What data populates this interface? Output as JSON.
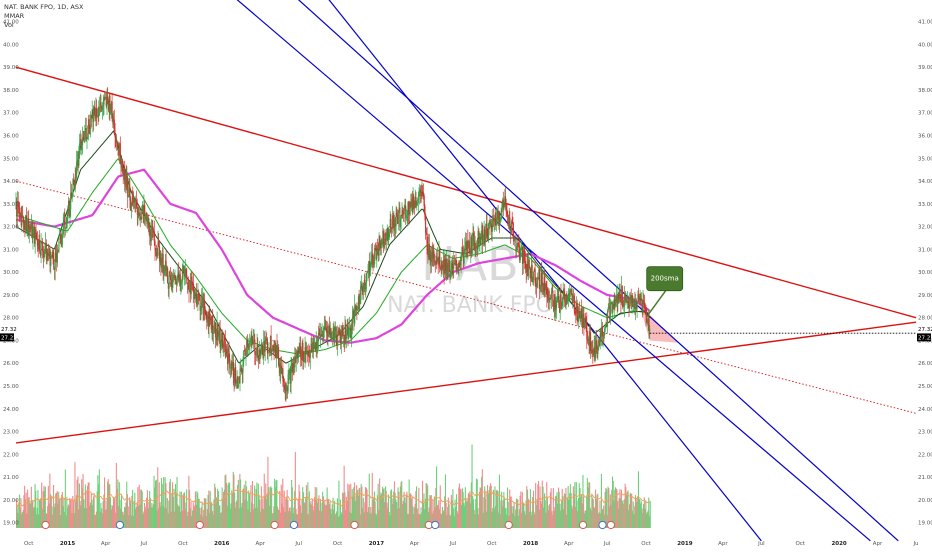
{
  "legend": {
    "symbol_line": "NAT. BANK FPO, 1D, ASX",
    "indicator_1": "MMAR",
    "indicator_2": "Vol"
  },
  "watermark": {
    "ticker": "NAB",
    "name": "NAT. BANK FPO"
  },
  "annotation": {
    "text": "200sma",
    "color": "#4a7a2e"
  },
  "price_tags": {
    "upper": "27.32",
    "lower": "27.22"
  },
  "colors": {
    "channel": "#0000cc",
    "trendline": "#dd1111",
    "sma200": "#dd44dd",
    "ema_dark": "#1a4a1a",
    "ema_green": "#22aa22",
    "bull": "#26a641",
    "bear": "#d32f2f",
    "triangle_fill": "#f6a5a5"
  },
  "chart_data": {
    "type": "line",
    "title": "NAT. BANK FPO, 1D, ASX",
    "x_tick_labels": [
      "Oct",
      "2015",
      "Apr",
      "Jul",
      "Oct",
      "2016",
      "Apr",
      "Jul",
      "Oct",
      "2017",
      "Apr",
      "Jul",
      "Oct",
      "2018",
      "Apr",
      "Jul",
      "Oct",
      "2019",
      "Apr",
      "Jul",
      "Oct",
      "2020",
      "Apr",
      "Ju"
    ],
    "y_ticks": [
      19,
      20,
      21,
      22,
      23,
      24,
      25,
      26,
      27,
      28,
      29,
      30,
      31,
      32,
      33,
      34,
      35,
      36,
      37,
      38,
      39,
      40,
      41
    ],
    "ylim": [
      18.5,
      41.6
    ],
    "xlim": [
      "2014-09-01",
      "2020-07-01"
    ],
    "grid": false,
    "price_series": {
      "name": "",
      "x": [
        "2014-09-01",
        "2014-10-01",
        "2014-11-01",
        "2014-12-01",
        "2015-01-01",
        "2015-02-01",
        "2015-03-01",
        "2015-04-10",
        "2015-05-01",
        "2015-06-01",
        "2015-07-01",
        "2015-08-01",
        "2015-09-01",
        "2015-10-01",
        "2015-11-01",
        "2015-12-01",
        "2016-01-01",
        "2016-02-10",
        "2016-03-01",
        "2016-04-01",
        "2016-05-01",
        "2016-06-01",
        "2016-07-01",
        "2016-08-01",
        "2016-09-01",
        "2016-10-01",
        "2016-11-01",
        "2016-12-01",
        "2017-01-01",
        "2017-02-01",
        "2017-03-01",
        "2017-04-20",
        "2017-05-01",
        "2017-06-01",
        "2017-07-01",
        "2017-08-01",
        "2017-09-01",
        "2017-10-01",
        "2017-11-01",
        "2017-12-01",
        "2018-01-01",
        "2018-02-01",
        "2018-03-01",
        "2018-04-01",
        "2018-05-01",
        "2018-06-01",
        "2018-07-01",
        "2018-08-01",
        "2018-09-01",
        "2018-09-20",
        "2018-10-01",
        "2018-10-10"
      ],
      "values": [
        32.8,
        32.0,
        31.0,
        30.5,
        32.5,
        35.5,
        37.0,
        37.5,
        35.5,
        33.0,
        32.5,
        31.0,
        29.5,
        30.0,
        29.0,
        28.0,
        27.0,
        25.0,
        27.0,
        26.5,
        27.0,
        25.0,
        26.5,
        26.5,
        27.5,
        27.2,
        27.5,
        29.5,
        31.0,
        32.0,
        32.5,
        33.5,
        31.0,
        30.5,
        30.0,
        31.0,
        31.5,
        32.0,
        33.0,
        31.0,
        30.0,
        29.5,
        28.5,
        29.0,
        28.0,
        26.5,
        28.0,
        29.0,
        28.5,
        28.8,
        28.2,
        27.3
      ]
    },
    "ema_fast": {
      "name": "",
      "x": [
        "2014-09-01",
        "2014-12-01",
        "2015-02-01",
        "2015-04-20",
        "2015-06-01",
        "2015-08-01",
        "2015-10-01",
        "2015-12-01",
        "2016-02-10",
        "2016-04-01",
        "2016-06-01",
        "2016-08-01",
        "2016-10-01",
        "2016-12-01",
        "2017-02-01",
        "2017-04-20",
        "2017-06-01",
        "2017-08-01",
        "2017-10-01",
        "2017-12-01",
        "2018-02-01",
        "2018-04-01",
        "2018-06-01",
        "2018-08-01",
        "2018-10-01",
        "2018-10-10"
      ],
      "values": [
        32.0,
        31.0,
        34.5,
        36.2,
        33.5,
        31.5,
        30.0,
        28.5,
        26.0,
        26.8,
        26.0,
        26.6,
        27.2,
        28.5,
        31.2,
        32.8,
        31.0,
        30.8,
        31.5,
        31.5,
        30.0,
        28.8,
        27.3,
        28.2,
        28.3,
        28.0
      ]
    },
    "ema_slow": {
      "name": "",
      "x": [
        "2014-09-01",
        "2015-01-01",
        "2015-03-01",
        "2015-05-01",
        "2015-07-01",
        "2015-09-01",
        "2015-11-01",
        "2016-01-01",
        "2016-03-01",
        "2016-05-01",
        "2016-07-01",
        "2016-09-01",
        "2016-11-01",
        "2017-01-01",
        "2017-03-01",
        "2017-05-01",
        "2017-07-01",
        "2017-09-01",
        "2017-11-01",
        "2018-01-01",
        "2018-03-01",
        "2018-05-01",
        "2018-07-01",
        "2018-09-01",
        "2018-10-10"
      ],
      "values": [
        32.5,
        31.8,
        33.5,
        35.0,
        33.2,
        31.2,
        29.8,
        28.2,
        27.0,
        26.6,
        26.4,
        26.6,
        27.0,
        28.2,
        30.0,
        31.2,
        30.6,
        30.8,
        31.2,
        30.6,
        29.3,
        28.5,
        28.0,
        28.3,
        28.2
      ]
    },
    "sma200": {
      "name": "200sma",
      "x": [
        "2014-09-01",
        "2014-12-01",
        "2015-03-01",
        "2015-05-01",
        "2015-07-01",
        "2015-09-01",
        "2015-11-01",
        "2016-01-01",
        "2016-03-01",
        "2016-05-01",
        "2016-07-01",
        "2016-09-01",
        "2016-11-01",
        "2017-01-01",
        "2017-03-01",
        "2017-05-01",
        "2017-07-01",
        "2017-09-01",
        "2017-11-01",
        "2018-01-01",
        "2018-03-01",
        "2018-05-01",
        "2018-07-01",
        "2018-09-01",
        "2018-10-10"
      ],
      "values": [
        32.3,
        32.0,
        32.5,
        34.2,
        34.5,
        33.0,
        32.6,
        31.0,
        29.0,
        28.0,
        27.5,
        27.0,
        26.9,
        27.1,
        27.7,
        29.0,
        30.0,
        30.4,
        30.6,
        30.8,
        30.3,
        29.6,
        29.0,
        28.8,
        28.3
      ]
    },
    "volume": {
      "name": "Vol",
      "x": [
        "2014-09-01",
        "2014-10-01",
        "2014-11-01",
        "2014-12-01",
        "2015-01-01",
        "2015-02-01",
        "2015-03-01",
        "2015-04-01",
        "2015-05-01",
        "2015-06-01",
        "2015-07-01",
        "2015-08-01",
        "2015-09-01",
        "2015-10-01",
        "2015-11-01",
        "2015-12-01",
        "2016-01-01",
        "2016-02-01",
        "2016-03-01",
        "2016-04-01",
        "2016-05-01",
        "2016-06-01",
        "2016-07-01",
        "2016-08-01",
        "2016-09-01",
        "2016-10-01",
        "2016-11-01",
        "2016-12-01",
        "2017-01-01",
        "2017-02-01",
        "2017-03-01",
        "2017-04-01",
        "2017-05-01",
        "2017-06-01",
        "2017-07-01",
        "2017-08-01",
        "2017-09-01",
        "2017-10-01",
        "2017-11-01",
        "2017-12-01",
        "2018-01-01",
        "2018-02-01",
        "2018-03-01",
        "2018-04-01",
        "2018-05-01",
        "2018-06-01",
        "2018-07-01",
        "2018-08-01",
        "2018-09-01",
        "2018-10-01"
      ],
      "values": [
        0.55,
        0.5,
        0.6,
        0.45,
        0.5,
        0.7,
        0.55,
        0.65,
        0.6,
        0.5,
        0.55,
        0.75,
        0.6,
        0.5,
        0.45,
        0.5,
        0.65,
        0.7,
        0.6,
        0.55,
        0.6,
        0.65,
        0.55,
        0.6,
        0.5,
        0.45,
        0.55,
        0.6,
        0.5,
        0.55,
        0.6,
        0.5,
        0.65,
        0.55,
        0.5,
        0.6,
        0.5,
        0.55,
        0.5,
        0.45,
        0.55,
        0.6,
        0.5,
        0.55,
        0.65,
        0.5,
        0.55,
        0.6,
        0.5,
        0.45
      ]
    },
    "channel_lines": [
      {
        "name": "",
        "x": [
          "2015-10-01",
          "2020-03-15"
        ],
        "values": [
          44.0,
          18.2
        ]
      },
      {
        "name": "",
        "x": [
          "2016-03-01",
          "2020-05-20"
        ],
        "values": [
          44.0,
          18.2
        ]
      },
      {
        "name": "",
        "x": [
          "2016-06-15",
          "2019-07-01"
        ],
        "values": [
          44.0,
          18.2
        ]
      }
    ],
    "trendlines": [
      {
        "name": "",
        "style": "solid",
        "x": [
          "2014-09-01",
          "2020-07-01"
        ],
        "values": [
          39.0,
          28.0
        ]
      },
      {
        "name": "",
        "style": "solid",
        "x": [
          "2014-09-01",
          "2020-07-01"
        ],
        "values": [
          22.5,
          27.8
        ]
      },
      {
        "name": "",
        "style": "dotted",
        "x": [
          "2014-09-01",
          "2020-07-01"
        ],
        "values": [
          34.0,
          23.8
        ]
      }
    ],
    "triangle_zone": {
      "x": [
        "2018-09-15",
        "2018-10-10",
        "2018-12-15"
      ],
      "values": [
        28.6,
        27.0,
        26.9
      ]
    },
    "annotations": [
      {
        "text": "200sma",
        "x": "2018-12-15",
        "y": 29.8
      }
    ]
  }
}
